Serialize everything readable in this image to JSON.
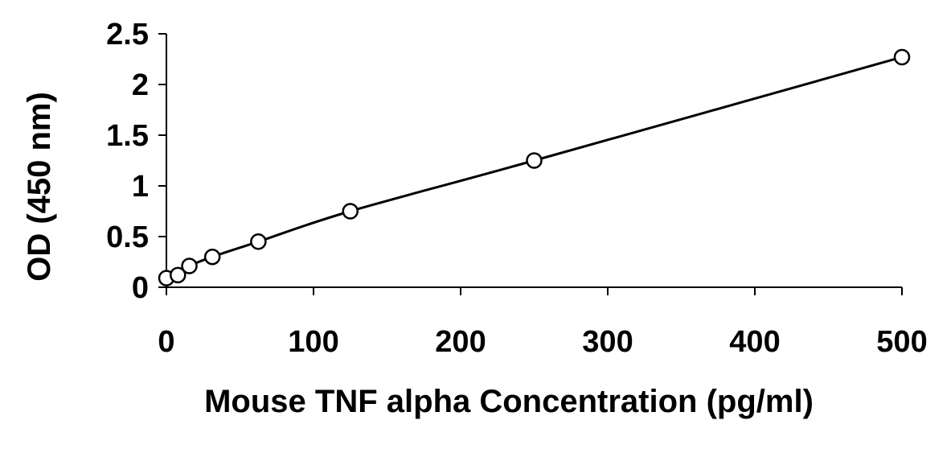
{
  "chart_data": {
    "type": "scatter",
    "title": "",
    "xlabel": "Mouse TNF alpha Concentration (pg/ml)",
    "ylabel": "OD (450 nm)",
    "xlim": [
      0,
      500
    ],
    "ylim": [
      0,
      2.5
    ],
    "x_ticks": [
      {
        "value": 0,
        "label": "0"
      },
      {
        "value": 100,
        "label": "100"
      },
      {
        "value": 200,
        "label": "200"
      },
      {
        "value": 300,
        "label": "300"
      },
      {
        "value": 400,
        "label": "400"
      },
      {
        "value": 500,
        "label": "500"
      }
    ],
    "y_ticks": [
      {
        "value": 0,
        "label": "0"
      },
      {
        "value": 0.5,
        "label": "0.5"
      },
      {
        "value": 1,
        "label": "1"
      },
      {
        "value": 1.5,
        "label": "1.5"
      },
      {
        "value": 2,
        "label": "2"
      },
      {
        "value": 2.5,
        "label": "2.5"
      }
    ],
    "grid": false,
    "legend": "none",
    "series": [
      {
        "x": [
          0,
          7.8,
          15.6,
          31.25,
          62.5,
          125,
          250,
          500
        ],
        "y": [
          0.09,
          0.12,
          0.21,
          0.3,
          0.45,
          0.75,
          1.25,
          2.27
        ],
        "marker": "open-circle",
        "trendline": "smooth"
      }
    ],
    "colors": {
      "axis": "#000000",
      "marker": "#000000",
      "line": "#000000"
    }
  }
}
